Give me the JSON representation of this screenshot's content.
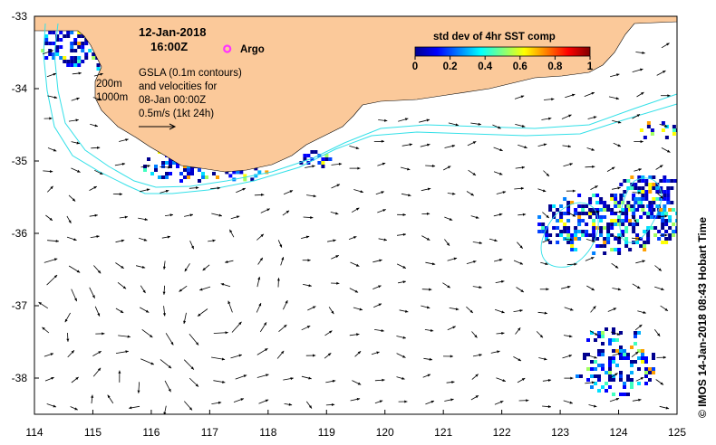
{
  "map": {
    "date_line": "12-Jan-2018",
    "time_line": "16:00Z",
    "legend_argo": "Argo",
    "contour_200": "200m",
    "contour_1000": "1000m",
    "info_lines": [
      "GSLA (0.1m contours)",
      "and velocities for",
      "08-Jan 00:00Z",
      "0.5m/s (1kt 24h)"
    ],
    "credit": "© IMOS 14-Jan-2018 08:43 Hobart Time",
    "colors": {
      "land": "#fbc99a",
      "ocean": "#ffffff",
      "bathymetry": "#33e0e8",
      "argo": "#ff33ff",
      "arrows": "#000000"
    }
  },
  "chart_data": {
    "type": "heatmap",
    "title": "std dev of 4hr SST comp",
    "colorbar": {
      "ticks": [
        0,
        0.2,
        0.4,
        0.6,
        0.8,
        1
      ],
      "range": [
        0,
        1
      ],
      "colormap": "jet"
    },
    "x_ticks": [
      114,
      115,
      116,
      117,
      118,
      119,
      120,
      121,
      122,
      123,
      124,
      125
    ],
    "y_ticks": [
      -33,
      -34,
      -35,
      -36,
      -37,
      -38
    ],
    "xlim": [
      114,
      125
    ],
    "ylim": [
      -38.5,
      -33
    ],
    "argo_floats": [
      {
        "lon": 117.3,
        "lat": -33.45
      }
    ],
    "sst_patches": [
      {
        "lon": 114.6,
        "lat": -33.35,
        "rx": 0.55,
        "ry": 0.35,
        "density": 0.45
      },
      {
        "lon": 115.1,
        "lat": -33.8,
        "rx": 0.1,
        "ry": 0.3,
        "density": 0.4
      },
      {
        "lon": 116.6,
        "lat": -35.0,
        "rx": 0.8,
        "ry": 0.3,
        "density": 0.4
      },
      {
        "lon": 117.6,
        "lat": -35.15,
        "rx": 0.4,
        "ry": 0.12,
        "density": 0.3
      },
      {
        "lon": 118.7,
        "lat": -34.95,
        "rx": 0.35,
        "ry": 0.15,
        "density": 0.3
      },
      {
        "lon": 123.8,
        "lat": -35.85,
        "rx": 1.25,
        "ry": 0.45,
        "density": 0.5
      },
      {
        "lon": 124.5,
        "lat": -35.4,
        "rx": 0.55,
        "ry": 0.3,
        "density": 0.55
      },
      {
        "lon": 123.9,
        "lat": -37.75,
        "rx": 0.7,
        "ry": 0.5,
        "density": 0.35
      },
      {
        "lon": 124.65,
        "lat": -34.55,
        "rx": 0.35,
        "ry": 0.15,
        "density": 0.35
      }
    ]
  }
}
